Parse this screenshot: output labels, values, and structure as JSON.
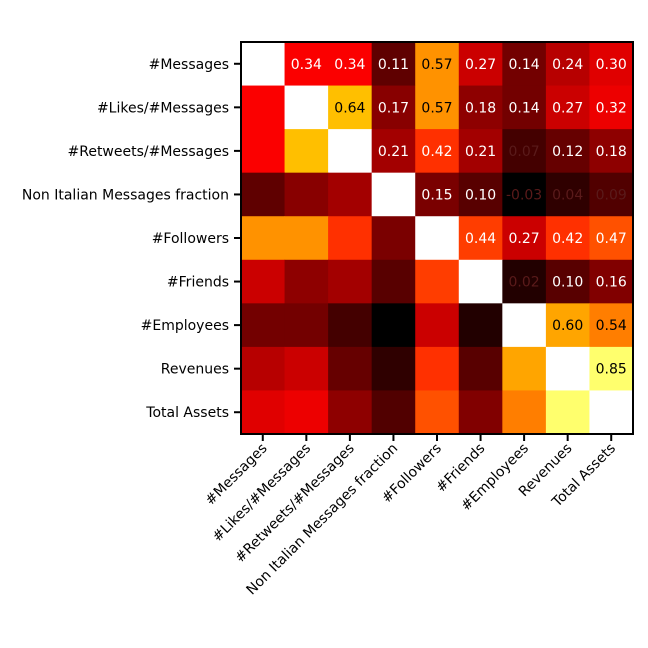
{
  "chart_data": {
    "type": "heatmap",
    "title": "",
    "xlabel": "",
    "ylabel": "",
    "colormap": "hot",
    "color_range": [
      -0.03,
      1.0
    ],
    "diagonal_color": "#ffffff",
    "grid": false,
    "legend": "none",
    "row_labels": [
      "#Messages",
      "#Likes/#Messages",
      "#Retweets/#Messages",
      "Non Italian Messages fraction",
      "#Followers",
      "#Friends",
      "#Employees",
      "Revenues",
      "Total Assets"
    ],
    "col_labels": [
      "#Messages",
      "#Likes/#Messages",
      "#Retweets/#Messages",
      "Non Italian Messages fraction",
      "#Followers",
      "#Friends",
      "#Employees",
      "Revenues",
      "Total Assets"
    ],
    "values": [
      [
        null,
        0.34,
        0.34,
        0.11,
        0.57,
        0.27,
        0.14,
        0.24,
        0.3
      ],
      [
        0.34,
        null,
        0.64,
        0.17,
        0.57,
        0.18,
        0.14,
        0.27,
        0.32
      ],
      [
        0.34,
        0.64,
        null,
        0.21,
        0.42,
        0.21,
        0.07,
        0.12,
        0.18
      ],
      [
        0.11,
        0.17,
        0.21,
        null,
        0.15,
        0.1,
        -0.03,
        0.04,
        0.09
      ],
      [
        0.57,
        0.57,
        0.42,
        0.15,
        null,
        0.44,
        0.27,
        0.42,
        0.47
      ],
      [
        0.27,
        0.18,
        0.21,
        0.1,
        0.44,
        null,
        0.02,
        0.1,
        0.16
      ],
      [
        0.14,
        0.14,
        0.07,
        -0.03,
        0.27,
        0.02,
        null,
        0.6,
        0.54
      ],
      [
        0.24,
        0.27,
        0.12,
        0.04,
        0.42,
        0.1,
        0.6,
        null,
        0.85
      ],
      [
        0.3,
        0.32,
        0.18,
        0.09,
        0.47,
        0.16,
        0.54,
        0.85,
        null
      ]
    ],
    "value_labels": [
      [
        "",
        "0.34",
        "0.34",
        "0.11",
        "0.57",
        "0.27",
        "0.14",
        "0.24",
        "0.30"
      ],
      [
        "",
        "",
        "0.64",
        "0.17",
        "0.57",
        "0.18",
        "0.14",
        "0.27",
        "0.32"
      ],
      [
        "",
        "",
        "",
        "0.21",
        "0.42",
        "0.21",
        "0.07",
        "0.12",
        "0.18"
      ],
      [
        "",
        "",
        "",
        "",
        "0.15",
        "0.10",
        "-0.03",
        "0.04",
        "0.09"
      ],
      [
        "",
        "",
        "",
        "",
        "",
        "0.44",
        "0.27",
        "0.42",
        "0.47"
      ],
      [
        "",
        "",
        "",
        "",
        "",
        "",
        "0.02",
        "0.10",
        "0.16"
      ],
      [
        "",
        "",
        "",
        "",
        "",
        "",
        "",
        "0.60",
        "0.54"
      ],
      [
        "",
        "",
        "",
        "",
        "",
        "",
        "",
        "",
        "0.85"
      ],
      [
        "",
        "",
        "",
        "",
        "",
        "",
        "",
        "",
        ""
      ]
    ]
  }
}
